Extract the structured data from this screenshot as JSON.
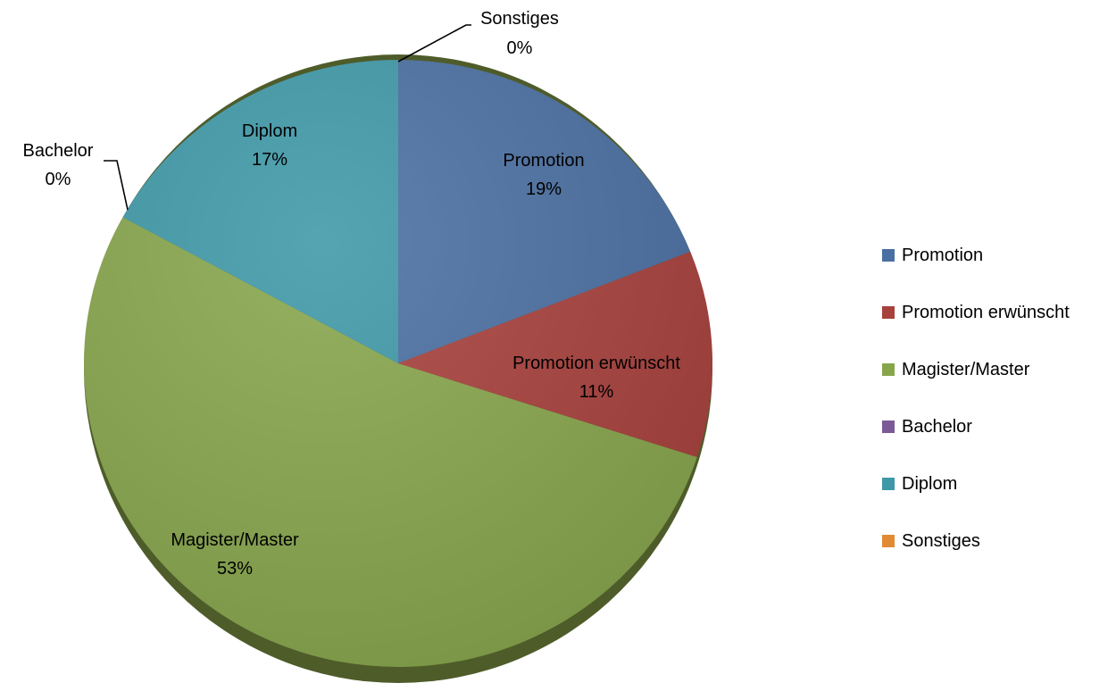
{
  "chart_data": {
    "type": "pie",
    "start_angle_deg": 0,
    "direction": "clockwise",
    "legend_position": "right",
    "slices": [
      {
        "name": "Promotion",
        "value": 19,
        "label": "19%",
        "color": "#4A6FA2"
      },
      {
        "name": "Promotion erwünscht",
        "value": 11,
        "label": "11%",
        "color": "#A8403C"
      },
      {
        "name": "Magister/Master",
        "value": 53,
        "label": "53%",
        "color": "#87A64C"
      },
      {
        "name": "Bachelor",
        "value": 0,
        "label": "0%",
        "color": "#7B5A97"
      },
      {
        "name": "Diplom",
        "value": 17,
        "label": "17%",
        "color": "#3E98A8"
      },
      {
        "name": "Sonstiges",
        "value": 0,
        "label": "0%",
        "color": "#E08A34"
      }
    ]
  }
}
